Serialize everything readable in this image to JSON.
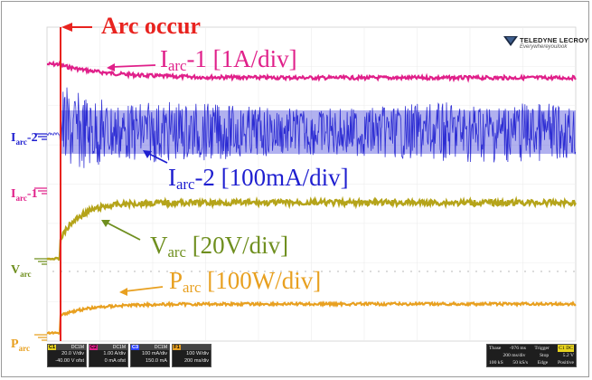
{
  "annotation_title": "Arc  occur",
  "trace_labels": {
    "iarc1": {
      "base": "I",
      "sub": "arc",
      "suffix": "-1  [1A/div]",
      "color": "#e0208a"
    },
    "iarc2": {
      "base": "I",
      "sub": "arc",
      "suffix": "-2  [100mA/div]",
      "color": "#1f1fd0"
    },
    "varc": {
      "base": "V",
      "sub": "arc",
      "suffix": "  [20V/div]",
      "color": "#6f8f1f"
    },
    "parc": {
      "base": "P",
      "sub": "arc",
      "suffix": "  [100W/div]",
      "color": "#e8a020"
    }
  },
  "side_markers": {
    "iarc2": {
      "base": "I",
      "sub": "arc",
      "suffix": "-2"
    },
    "iarc1": {
      "base": "I",
      "sub": "arc",
      "suffix": "-1"
    },
    "varc": {
      "base": "V",
      "sub": "arc",
      "suffix": ""
    },
    "parc": {
      "base": "P",
      "sub": "arc",
      "suffix": ""
    }
  },
  "logo": {
    "title": "TELEDYNE LECROY",
    "tagline": "Everywhereyoulook"
  },
  "channels": [
    {
      "num": "C1",
      "tag": "DC1M",
      "line1": "20.0 V/div",
      "line2": "-40.00 V ofst",
      "color": "#e6d21e"
    },
    {
      "num": "C2",
      "tag": "DC1M",
      "line1": "1.00 A/div",
      "line2": "0 mA ofst",
      "color": "#e0208a"
    },
    {
      "num": "C3",
      "tag": "DC1M",
      "line1": "100 mA/div",
      "line2": "150.0 mA",
      "color": "#2a40ff"
    },
    {
      "num": "F1",
      "tag": "",
      "line1": "100 W/div",
      "line2": "200 ms/div",
      "color": "#e8a020"
    }
  ],
  "timebase": {
    "label": "Tbase",
    "offset": "-976 ms",
    "rate": "200 ms/div",
    "samples": "100 kS",
    "srate": "50 kS/s",
    "trigger_label": "Trigger",
    "trigger_ch": "C1 DC",
    "mode": "Stop",
    "level": "5.2 V",
    "type": "Edge",
    "slope": "Positive"
  },
  "colors": {
    "arc_line": "#e8231f",
    "grid": "#cfcfcf",
    "dots": "#c8c8c8"
  }
}
